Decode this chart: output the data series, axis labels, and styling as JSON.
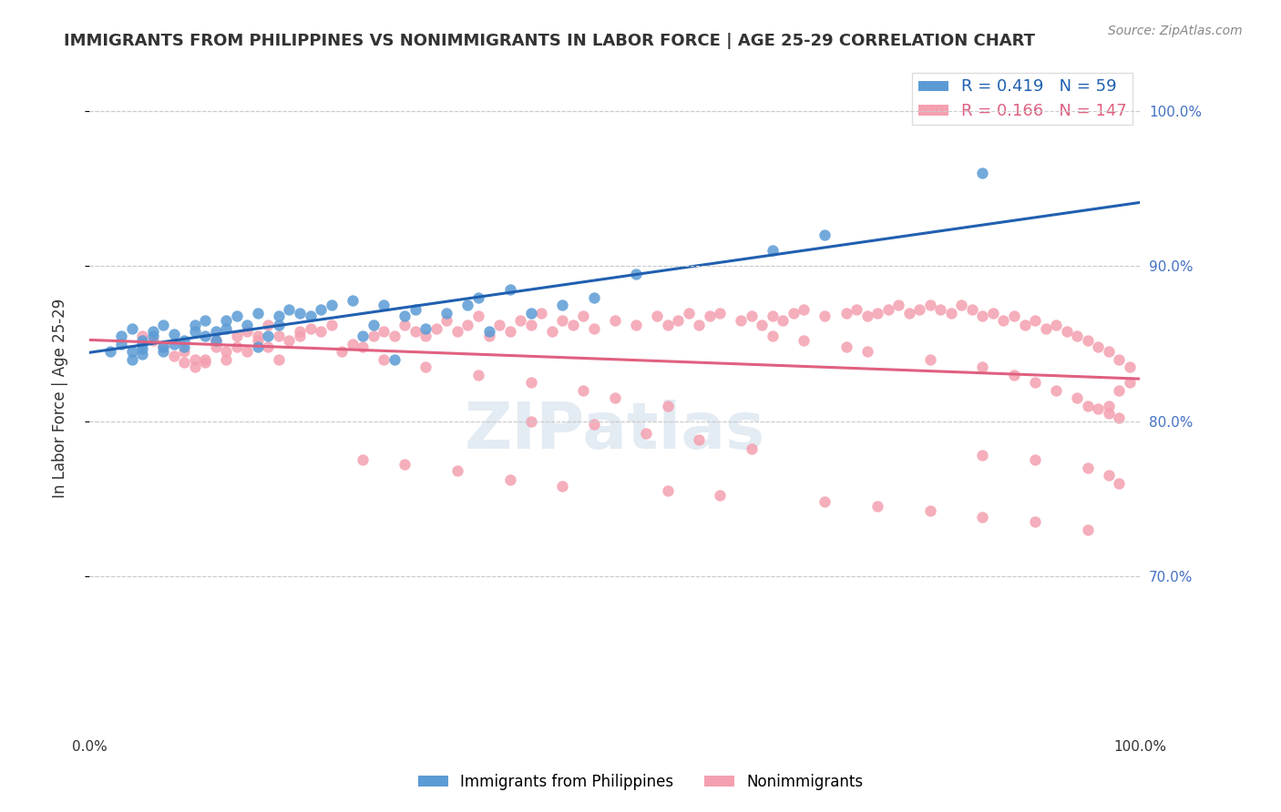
{
  "title": "IMMIGRANTS FROM PHILIPPINES VS NONIMMIGRANTS IN LABOR FORCE | AGE 25-29 CORRELATION CHART",
  "source": "Source: ZipAtlas.com",
  "xlabel_bottom": "",
  "ylabel_left": "In Labor Force | Age 25-29",
  "x_min": 0.0,
  "x_max": 1.0,
  "y_min": 0.6,
  "y_max": 1.03,
  "right_yticks": [
    0.7,
    0.8,
    0.9,
    1.0
  ],
  "right_ytick_labels": [
    "70.0%",
    "80.0%",
    "90.0%",
    "100.0%"
  ],
  "xtick_labels": [
    "0.0%",
    "100.0%"
  ],
  "xticks": [
    0.0,
    1.0
  ],
  "grid_color": "#cccccc",
  "background_color": "#ffffff",
  "blue_color": "#5b9bd5",
  "pink_color": "#f4a0b0",
  "blue_line_color": "#2060b0",
  "pink_line_color": "#e06080",
  "blue_R": 0.419,
  "blue_N": 59,
  "pink_R": 0.166,
  "pink_N": 147,
  "legend_label_blue": "Immigrants from Philippines",
  "legend_label_pink": "Nonimmigrants",
  "watermark": "ZIPatlas",
  "blue_x": [
    0.02,
    0.03,
    0.03,
    0.04,
    0.04,
    0.04,
    0.05,
    0.05,
    0.05,
    0.05,
    0.06,
    0.06,
    0.07,
    0.07,
    0.07,
    0.08,
    0.08,
    0.09,
    0.09,
    0.1,
    0.1,
    0.11,
    0.11,
    0.12,
    0.12,
    0.13,
    0.13,
    0.14,
    0.15,
    0.16,
    0.16,
    0.17,
    0.18,
    0.18,
    0.19,
    0.2,
    0.21,
    0.22,
    0.23,
    0.25,
    0.26,
    0.27,
    0.28,
    0.29,
    0.3,
    0.31,
    0.32,
    0.34,
    0.36,
    0.37,
    0.38,
    0.4,
    0.42,
    0.45,
    0.48,
    0.52,
    0.65,
    0.7,
    0.85
  ],
  "blue_y": [
    0.845,
    0.85,
    0.855,
    0.84,
    0.845,
    0.86,
    0.843,
    0.847,
    0.85,
    0.852,
    0.855,
    0.858,
    0.845,
    0.848,
    0.862,
    0.85,
    0.856,
    0.852,
    0.848,
    0.858,
    0.862,
    0.855,
    0.865,
    0.852,
    0.858,
    0.86,
    0.865,
    0.868,
    0.862,
    0.87,
    0.848,
    0.855,
    0.862,
    0.868,
    0.872,
    0.87,
    0.868,
    0.872,
    0.875,
    0.878,
    0.855,
    0.862,
    0.875,
    0.84,
    0.868,
    0.872,
    0.86,
    0.87,
    0.875,
    0.88,
    0.858,
    0.885,
    0.87,
    0.875,
    0.88,
    0.895,
    0.91,
    0.92,
    0.96
  ],
  "pink_x": [
    0.05,
    0.06,
    0.07,
    0.08,
    0.09,
    0.09,
    0.1,
    0.1,
    0.11,
    0.11,
    0.12,
    0.12,
    0.13,
    0.13,
    0.14,
    0.14,
    0.15,
    0.15,
    0.16,
    0.16,
    0.17,
    0.17,
    0.18,
    0.18,
    0.19,
    0.2,
    0.2,
    0.21,
    0.22,
    0.23,
    0.24,
    0.25,
    0.26,
    0.27,
    0.28,
    0.29,
    0.3,
    0.31,
    0.32,
    0.33,
    0.34,
    0.35,
    0.36,
    0.37,
    0.38,
    0.39,
    0.4,
    0.41,
    0.42,
    0.43,
    0.44,
    0.45,
    0.46,
    0.47,
    0.48,
    0.5,
    0.52,
    0.54,
    0.55,
    0.56,
    0.57,
    0.58,
    0.59,
    0.6,
    0.62,
    0.63,
    0.64,
    0.65,
    0.66,
    0.67,
    0.68,
    0.7,
    0.72,
    0.73,
    0.74,
    0.75,
    0.76,
    0.77,
    0.78,
    0.79,
    0.8,
    0.81,
    0.82,
    0.83,
    0.84,
    0.85,
    0.86,
    0.87,
    0.88,
    0.89,
    0.9,
    0.91,
    0.92,
    0.93,
    0.94,
    0.95,
    0.96,
    0.97,
    0.98,
    0.99,
    0.65,
    0.68,
    0.72,
    0.74,
    0.8,
    0.85,
    0.88,
    0.9,
    0.92,
    0.94,
    0.95,
    0.96,
    0.97,
    0.98,
    0.26,
    0.3,
    0.35,
    0.4,
    0.45,
    0.55,
    0.6,
    0.7,
    0.75,
    0.8,
    0.85,
    0.9,
    0.95,
    0.97,
    0.98,
    0.99,
    0.42,
    0.48,
    0.53,
    0.58,
    0.63,
    0.85,
    0.9,
    0.95,
    0.97,
    0.98,
    0.28,
    0.32,
    0.37,
    0.42,
    0.47,
    0.5,
    0.55
  ],
  "pink_y": [
    0.855,
    0.852,
    0.848,
    0.842,
    0.838,
    0.845,
    0.84,
    0.835,
    0.84,
    0.838,
    0.848,
    0.852,
    0.845,
    0.84,
    0.855,
    0.848,
    0.858,
    0.845,
    0.852,
    0.855,
    0.848,
    0.862,
    0.855,
    0.84,
    0.852,
    0.855,
    0.858,
    0.86,
    0.858,
    0.862,
    0.845,
    0.85,
    0.848,
    0.855,
    0.858,
    0.855,
    0.862,
    0.858,
    0.855,
    0.86,
    0.865,
    0.858,
    0.862,
    0.868,
    0.855,
    0.862,
    0.858,
    0.865,
    0.862,
    0.87,
    0.858,
    0.865,
    0.862,
    0.868,
    0.86,
    0.865,
    0.862,
    0.868,
    0.862,
    0.865,
    0.87,
    0.862,
    0.868,
    0.87,
    0.865,
    0.868,
    0.862,
    0.868,
    0.865,
    0.87,
    0.872,
    0.868,
    0.87,
    0.872,
    0.868,
    0.87,
    0.872,
    0.875,
    0.87,
    0.872,
    0.875,
    0.872,
    0.87,
    0.875,
    0.872,
    0.868,
    0.87,
    0.865,
    0.868,
    0.862,
    0.865,
    0.86,
    0.862,
    0.858,
    0.855,
    0.852,
    0.848,
    0.845,
    0.84,
    0.835,
    0.855,
    0.852,
    0.848,
    0.845,
    0.84,
    0.835,
    0.83,
    0.825,
    0.82,
    0.815,
    0.81,
    0.808,
    0.805,
    0.802,
    0.775,
    0.772,
    0.768,
    0.762,
    0.758,
    0.755,
    0.752,
    0.748,
    0.745,
    0.742,
    0.738,
    0.735,
    0.73,
    0.81,
    0.82,
    0.825,
    0.8,
    0.798,
    0.792,
    0.788,
    0.782,
    0.778,
    0.775,
    0.77,
    0.765,
    0.76,
    0.84,
    0.835,
    0.83,
    0.825,
    0.82,
    0.815,
    0.81
  ]
}
